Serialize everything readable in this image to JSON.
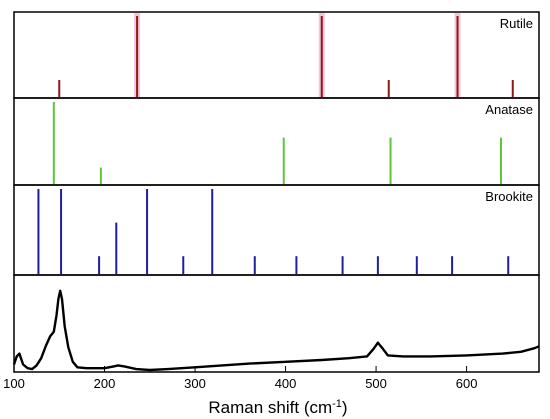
{
  "chart_data": {
    "type": "stacked-panels",
    "xlabel": "Raman shift (cm",
    "xlabel_sup": "-1",
    "xlabel_suffix": ")",
    "xlim": [
      100,
      680
    ],
    "xticks": [
      100,
      200,
      300,
      400,
      500,
      600
    ],
    "panels": [
      {
        "label": "Rutile",
        "type": "stick",
        "color": "#8b1a1a",
        "highlight_color": "#f4c6dc",
        "ylim": [
          0,
          1
        ],
        "sticks": [
          {
            "x": 150,
            "y": 0.2
          },
          {
            "x": 236,
            "y": 1.0
          },
          {
            "x": 440,
            "y": 1.0
          },
          {
            "x": 514,
            "y": 0.2
          },
          {
            "x": 590,
            "y": 1.0
          },
          {
            "x": 651,
            "y": 0.2
          }
        ]
      },
      {
        "label": "Anatase",
        "type": "stick",
        "color": "#5ec63a",
        "ylim": [
          0,
          1
        ],
        "sticks": [
          {
            "x": 144,
            "y": 1.0
          },
          {
            "x": 196,
            "y": 0.19
          },
          {
            "x": 398,
            "y": 0.56
          },
          {
            "x": 516,
            "y": 0.56
          },
          {
            "x": 638,
            "y": 0.56
          }
        ]
      },
      {
        "label": "Brookite",
        "type": "stick",
        "color": "#1f1f9e",
        "ylim": [
          0,
          1
        ],
        "sticks": [
          {
            "x": 127,
            "y": 1.0
          },
          {
            "x": 152,
            "y": 1.0
          },
          {
            "x": 194,
            "y": 0.2
          },
          {
            "x": 213,
            "y": 0.6
          },
          {
            "x": 247,
            "y": 1.0
          },
          {
            "x": 287,
            "y": 0.2
          },
          {
            "x": 319,
            "y": 1.0
          },
          {
            "x": 366,
            "y": 0.2
          },
          {
            "x": 412,
            "y": 0.2
          },
          {
            "x": 463,
            "y": 0.2
          },
          {
            "x": 502,
            "y": 0.2
          },
          {
            "x": 545,
            "y": 0.2
          },
          {
            "x": 584,
            "y": 0.2
          },
          {
            "x": 646,
            "y": 0.2
          }
        ]
      },
      {
        "label": "",
        "type": "line",
        "color": "#000000",
        "ylim": [
          0,
          1
        ],
        "series": [
          {
            "x": 100,
            "y": 0.06
          },
          {
            "x": 103,
            "y": 0.15
          },
          {
            "x": 106,
            "y": 0.18
          },
          {
            "x": 110,
            "y": 0.06
          },
          {
            "x": 115,
            "y": 0.02
          },
          {
            "x": 120,
            "y": 0.01
          },
          {
            "x": 125,
            "y": 0.05
          },
          {
            "x": 130,
            "y": 0.13
          },
          {
            "x": 135,
            "y": 0.26
          },
          {
            "x": 140,
            "y": 0.37
          },
          {
            "x": 144,
            "y": 0.42
          },
          {
            "x": 147,
            "y": 0.6
          },
          {
            "x": 149,
            "y": 0.78
          },
          {
            "x": 151,
            "y": 0.87
          },
          {
            "x": 153,
            "y": 0.78
          },
          {
            "x": 156,
            "y": 0.48
          },
          {
            "x": 160,
            "y": 0.25
          },
          {
            "x": 165,
            "y": 0.09
          },
          {
            "x": 170,
            "y": 0.03
          },
          {
            "x": 180,
            "y": 0.02
          },
          {
            "x": 190,
            "y": 0.02
          },
          {
            "x": 200,
            "y": 0.02
          },
          {
            "x": 210,
            "y": 0.04
          },
          {
            "x": 215,
            "y": 0.05
          },
          {
            "x": 222,
            "y": 0.04
          },
          {
            "x": 235,
            "y": 0.01
          },
          {
            "x": 250,
            "y": 0.0
          },
          {
            "x": 270,
            "y": 0.01
          },
          {
            "x": 300,
            "y": 0.03
          },
          {
            "x": 330,
            "y": 0.05
          },
          {
            "x": 360,
            "y": 0.07
          },
          {
            "x": 400,
            "y": 0.09
          },
          {
            "x": 440,
            "y": 0.11
          },
          {
            "x": 470,
            "y": 0.13
          },
          {
            "x": 490,
            "y": 0.15
          },
          {
            "x": 497,
            "y": 0.23
          },
          {
            "x": 502,
            "y": 0.3
          },
          {
            "x": 507,
            "y": 0.24
          },
          {
            "x": 513,
            "y": 0.16
          },
          {
            "x": 530,
            "y": 0.15
          },
          {
            "x": 560,
            "y": 0.15
          },
          {
            "x": 600,
            "y": 0.16
          },
          {
            "x": 640,
            "y": 0.18
          },
          {
            "x": 660,
            "y": 0.2
          },
          {
            "x": 675,
            "y": 0.24
          },
          {
            "x": 680,
            "y": 0.26
          }
        ]
      }
    ]
  }
}
